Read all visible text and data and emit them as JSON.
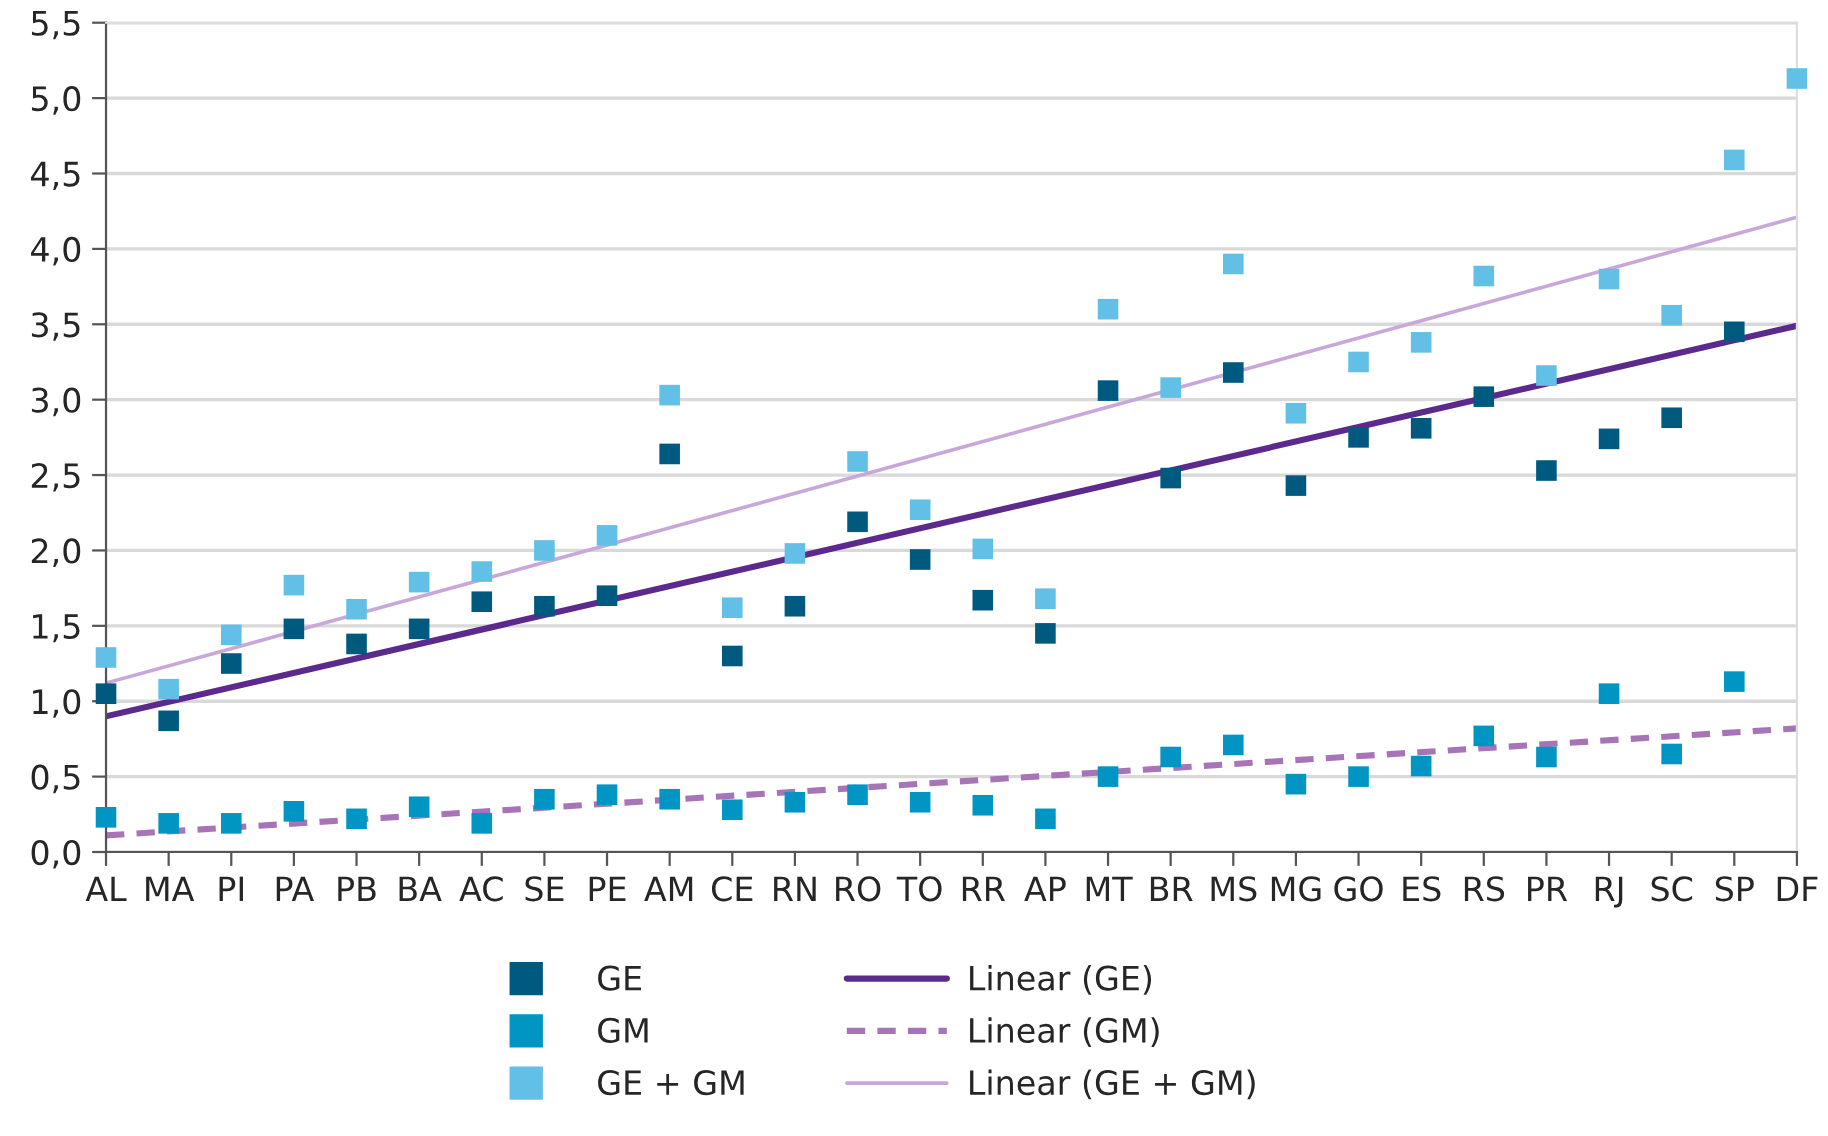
{
  "chart_data": {
    "type": "scatter",
    "categories": [
      "AL",
      "MA",
      "PI",
      "PA",
      "PB",
      "BA",
      "AC",
      "SE",
      "PE",
      "AM",
      "CE",
      "RN",
      "RO",
      "TO",
      "RR",
      "AP",
      "MT",
      "BR",
      "MS",
      "MG",
      "GO",
      "ES",
      "RS",
      "PR",
      "RJ",
      "SC",
      "SP",
      "DF"
    ],
    "series": [
      {
        "name": "GE",
        "marker": "square",
        "color": "#005a80",
        "values": [
          1.05,
          0.87,
          1.25,
          1.48,
          1.38,
          1.48,
          1.66,
          1.63,
          1.7,
          2.64,
          1.3,
          1.63,
          2.19,
          1.94,
          1.67,
          1.45,
          3.06,
          2.48,
          3.18,
          2.43,
          2.75,
          2.81,
          3.02,
          2.53,
          2.74,
          2.88,
          3.45,
          null
        ]
      },
      {
        "name": "GM",
        "marker": "square",
        "color": "#0095c2",
        "values": [
          0.23,
          0.19,
          0.19,
          0.27,
          0.22,
          0.3,
          0.19,
          0.35,
          0.38,
          0.35,
          0.28,
          0.33,
          0.38,
          0.33,
          0.31,
          0.22,
          0.5,
          0.63,
          0.71,
          0.45,
          0.5,
          0.57,
          0.77,
          0.63,
          1.05,
          0.65,
          1.13,
          null
        ]
      },
      {
        "name": "GE + GM",
        "marker": "square",
        "color": "#62c0e6",
        "values": [
          1.29,
          1.08,
          1.44,
          1.77,
          1.61,
          1.79,
          1.86,
          2.0,
          2.1,
          3.03,
          1.62,
          1.98,
          2.59,
          2.27,
          2.01,
          1.68,
          3.6,
          3.08,
          3.9,
          2.91,
          3.25,
          3.38,
          3.82,
          3.16,
          3.8,
          3.56,
          4.59,
          5.13
        ]
      },
      {
        "name": "Linear (GE)",
        "type": "line",
        "color": "#5b2a8c",
        "marker": "none",
        "line_style": "solid",
        "x": [
          "AL",
          "DF"
        ],
        "values": [
          0.9,
          3.49
        ]
      },
      {
        "name": "Linear (GM)",
        "type": "line",
        "color": "#a874b8",
        "marker": "none",
        "line_style": "dashed",
        "x": [
          "AL",
          "DF"
        ],
        "values": [
          0.11,
          0.82
        ]
      },
      {
        "name": "Linear (GE + GM)",
        "type": "line",
        "color": "#c8a8d8",
        "marker": "none",
        "line_style": "solid",
        "x": [
          "AL",
          "DF"
        ],
        "values": [
          1.12,
          4.21
        ]
      }
    ],
    "ylim": [
      0,
      5.5
    ],
    "yticks": [
      {
        "value": 0,
        "label": "0,0"
      },
      {
        "value": 0.5,
        "label": "0,5"
      },
      {
        "value": 1,
        "label": "1,0"
      },
      {
        "value": 1.5,
        "label": "1,5"
      },
      {
        "value": 2,
        "label": "2,0"
      },
      {
        "value": 2.5,
        "label": "2,5"
      },
      {
        "value": 3,
        "label": "3,0"
      },
      {
        "value": 3.5,
        "label": "3,5"
      },
      {
        "value": 4,
        "label": "4,0"
      },
      {
        "value": 4.5,
        "label": "4,5"
      },
      {
        "value": 5,
        "label": "5,0"
      },
      {
        "value": 5.5,
        "label": "5,5"
      }
    ],
    "grid": "y",
    "legend": "bottom"
  }
}
